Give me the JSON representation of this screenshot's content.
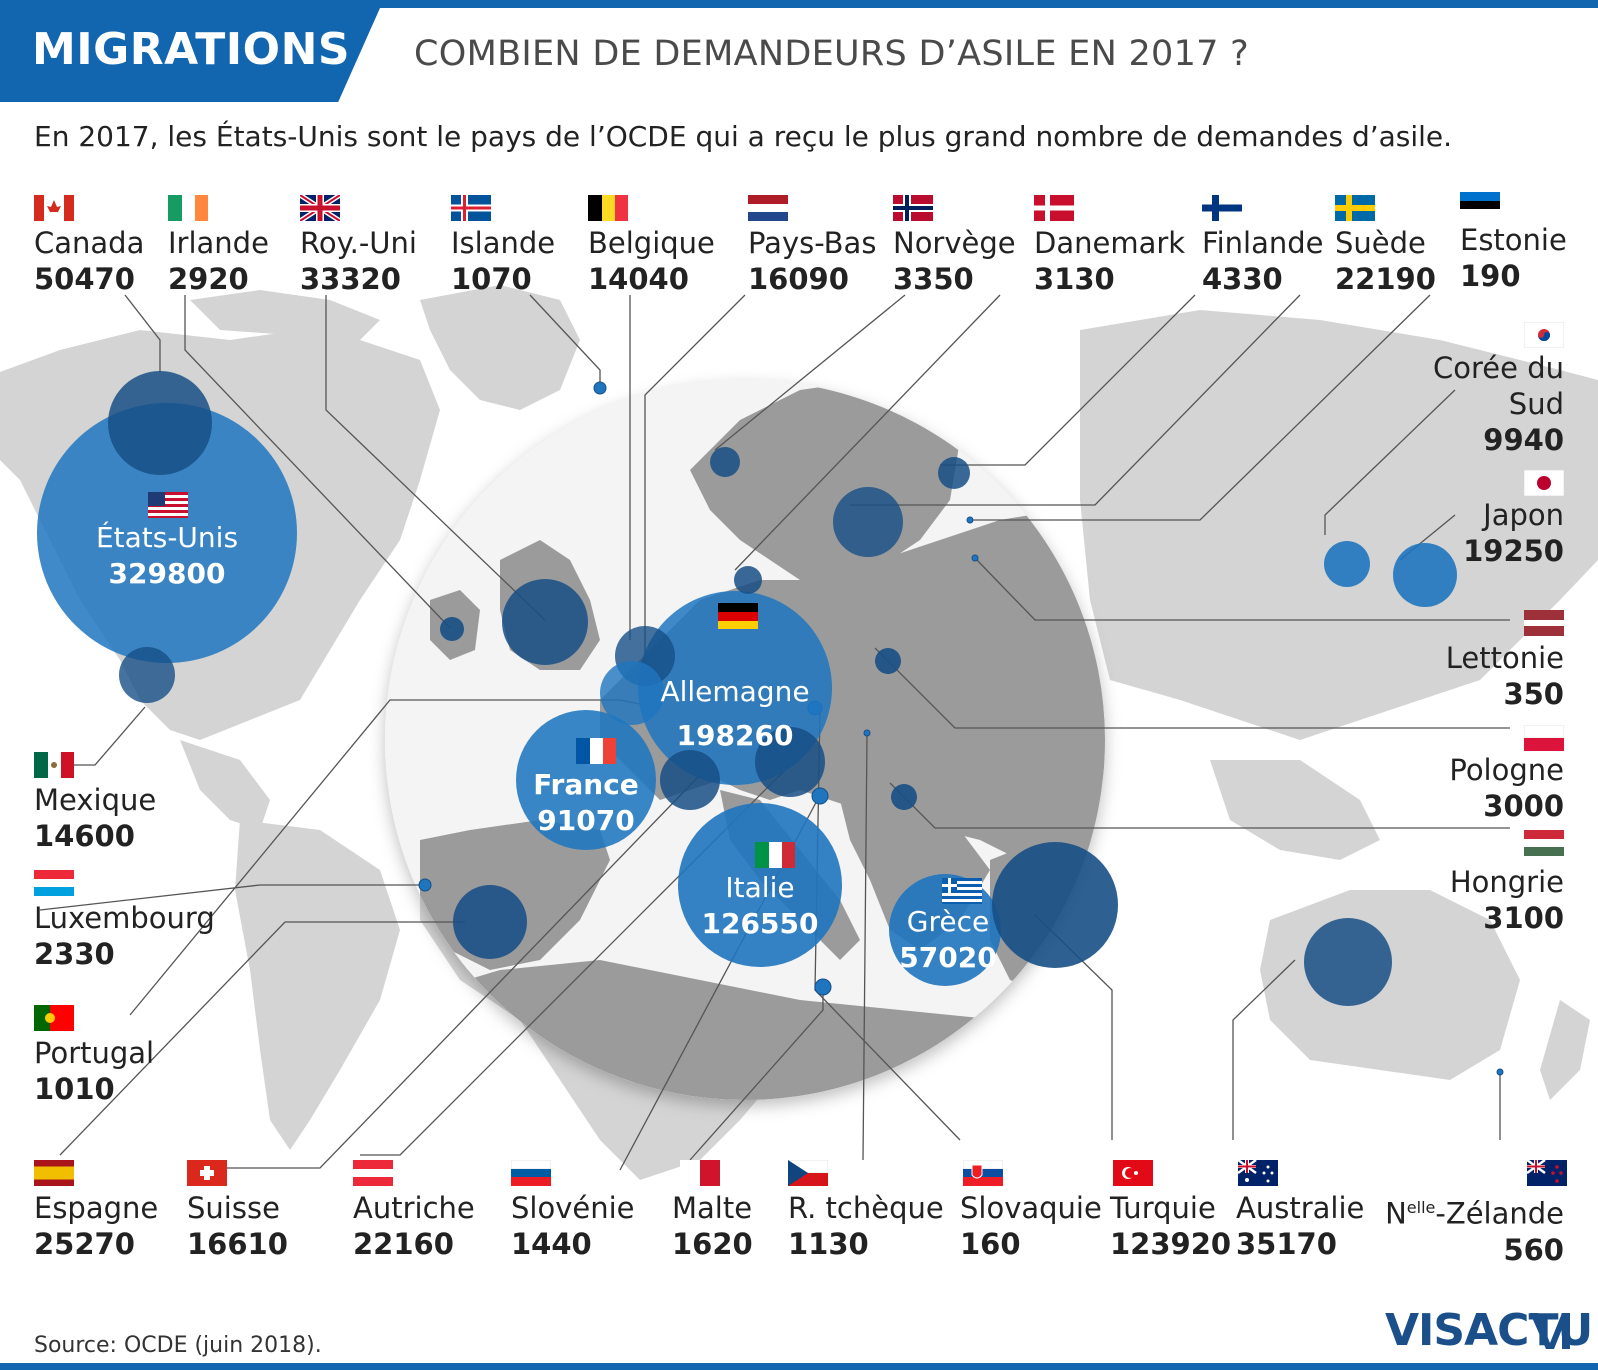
{
  "header": {
    "tag": "MIGRATIONS",
    "title": "COMBIEN DE DEMANDEURS D’ASILE EN 2017 ?",
    "subtitle": "En 2017, les États-Unis sont le pays de l’OCDE qui a reçu le plus grand nombre de demandes d’asile."
  },
  "top_row": [
    {
      "key": "canada",
      "name": "Canada",
      "value": "50470"
    },
    {
      "key": "irlande",
      "name": "Irlande",
      "value": "2920"
    },
    {
      "key": "royuni",
      "name": "Roy.-Uni",
      "value": "33320"
    },
    {
      "key": "islande",
      "name": "Islande",
      "value": "1070"
    },
    {
      "key": "belgique",
      "name": "Belgique",
      "value": "14040"
    },
    {
      "key": "paysbas",
      "name": "Pays-Bas",
      "value": "16090"
    },
    {
      "key": "norvege",
      "name": "Norvège",
      "value": "3350"
    },
    {
      "key": "danemark",
      "name": "Danemark",
      "value": "3130"
    },
    {
      "key": "finlande",
      "name": "Finlande",
      "value": "4330"
    },
    {
      "key": "suede",
      "name": "Suède",
      "value": "22190"
    },
    {
      "key": "estonie",
      "name": "Estonie",
      "value": "190"
    }
  ],
  "right_col": [
    {
      "key": "coree",
      "name": "Corée du Sud",
      "value": "9940"
    },
    {
      "key": "japon",
      "name": "Japon",
      "value": "19250"
    },
    {
      "key": "lettonie",
      "name": "Lettonie",
      "value": "350"
    },
    {
      "key": "pologne",
      "name": "Pologne",
      "value": "3000"
    },
    {
      "key": "hongrie",
      "name": "Hongrie",
      "value": "3100"
    }
  ],
  "left_col": [
    {
      "key": "mexique",
      "name": "Mexique",
      "value": "14600"
    },
    {
      "key": "luxembourg",
      "name": "Luxembourg",
      "value": "2330"
    },
    {
      "key": "portugal",
      "name": "Portugal",
      "value": "1010"
    }
  ],
  "bottom_row": [
    {
      "key": "espagne",
      "name": "Espagne",
      "value": "25270"
    },
    {
      "key": "suisse",
      "name": "Suisse",
      "value": "16610"
    },
    {
      "key": "autriche",
      "name": "Autriche",
      "value": "22160"
    },
    {
      "key": "slovenie",
      "name": "Slovénie",
      "value": "1440"
    },
    {
      "key": "malte",
      "name": "Malte",
      "value": "1620"
    },
    {
      "key": "rtcheque",
      "name": "R. tchèque",
      "value": "1130"
    },
    {
      "key": "slovaquie",
      "name": "Slovaquie",
      "value": "160"
    },
    {
      "key": "turquie",
      "name": "Turquie",
      "value": "123920"
    },
    {
      "key": "australie",
      "name": "Australie",
      "value": "35170"
    },
    {
      "key": "nz",
      "name_prefix": "N",
      "name_sup": "elle",
      "name_suffix": "-Zélande",
      "value": "560"
    }
  ],
  "in_map": [
    {
      "key": "usa",
      "name": "États-Unis",
      "value": "329800"
    },
    {
      "key": "allemagne",
      "name": "Allemagne",
      "value": "198260"
    },
    {
      "key": "france",
      "name": "France",
      "value": "91070"
    },
    {
      "key": "italie",
      "name": "Italie",
      "value": "126550"
    },
    {
      "key": "grece",
      "name": "Grèce",
      "value": "57020"
    }
  ],
  "footer": {
    "source": "Source: OCDE (juin 2018).",
    "logo": "VISACTU"
  },
  "colors": {
    "accent": "#1266b0",
    "bubble": "#1f76bf",
    "bubble_dark": "#174f86",
    "land": "#d4d4d4",
    "land_inset": "#9b9b9b",
    "leader": "#555555"
  }
}
